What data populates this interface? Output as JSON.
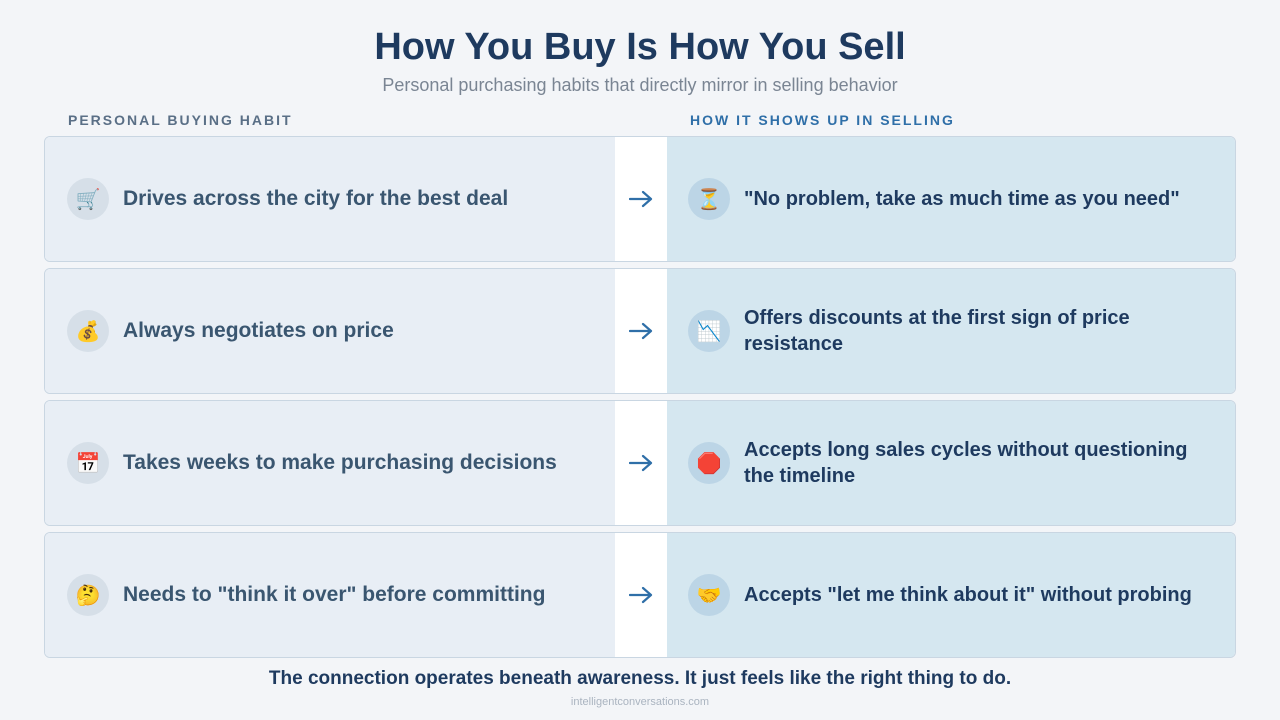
{
  "header": {
    "title": "How You Buy Is How You Sell",
    "subtitle": "Personal purchasing habits that directly mirror in selling behavior"
  },
  "columns": {
    "left": "PERSONAL BUYING HABIT",
    "right": "HOW IT SHOWS UP IN SELLING"
  },
  "rows": [
    {
      "habit_icon": "🛒",
      "habit": "Drives across the city for the best deal",
      "selling_icon": "⏳",
      "selling": "\"No problem, take as much time as you need\""
    },
    {
      "habit_icon": "💰",
      "habit": "Always negotiates on price",
      "selling_icon": "📉",
      "selling": "Offers discounts at the first sign of price resistance"
    },
    {
      "habit_icon": "📅",
      "habit": "Takes weeks to make purchasing decisions",
      "selling_icon": "🛑",
      "selling": "Accepts long sales cycles without questioning the timeline"
    },
    {
      "habit_icon": "🤔",
      "habit": "Needs to \"think it over\" before committing",
      "selling_icon": "🤝",
      "selling": "Accepts \"let me think about it\" without probing"
    }
  ],
  "footer": {
    "note": "The connection operates beneath awareness. It just feels like the right thing to do.",
    "source": "intelligentconversations.com"
  }
}
